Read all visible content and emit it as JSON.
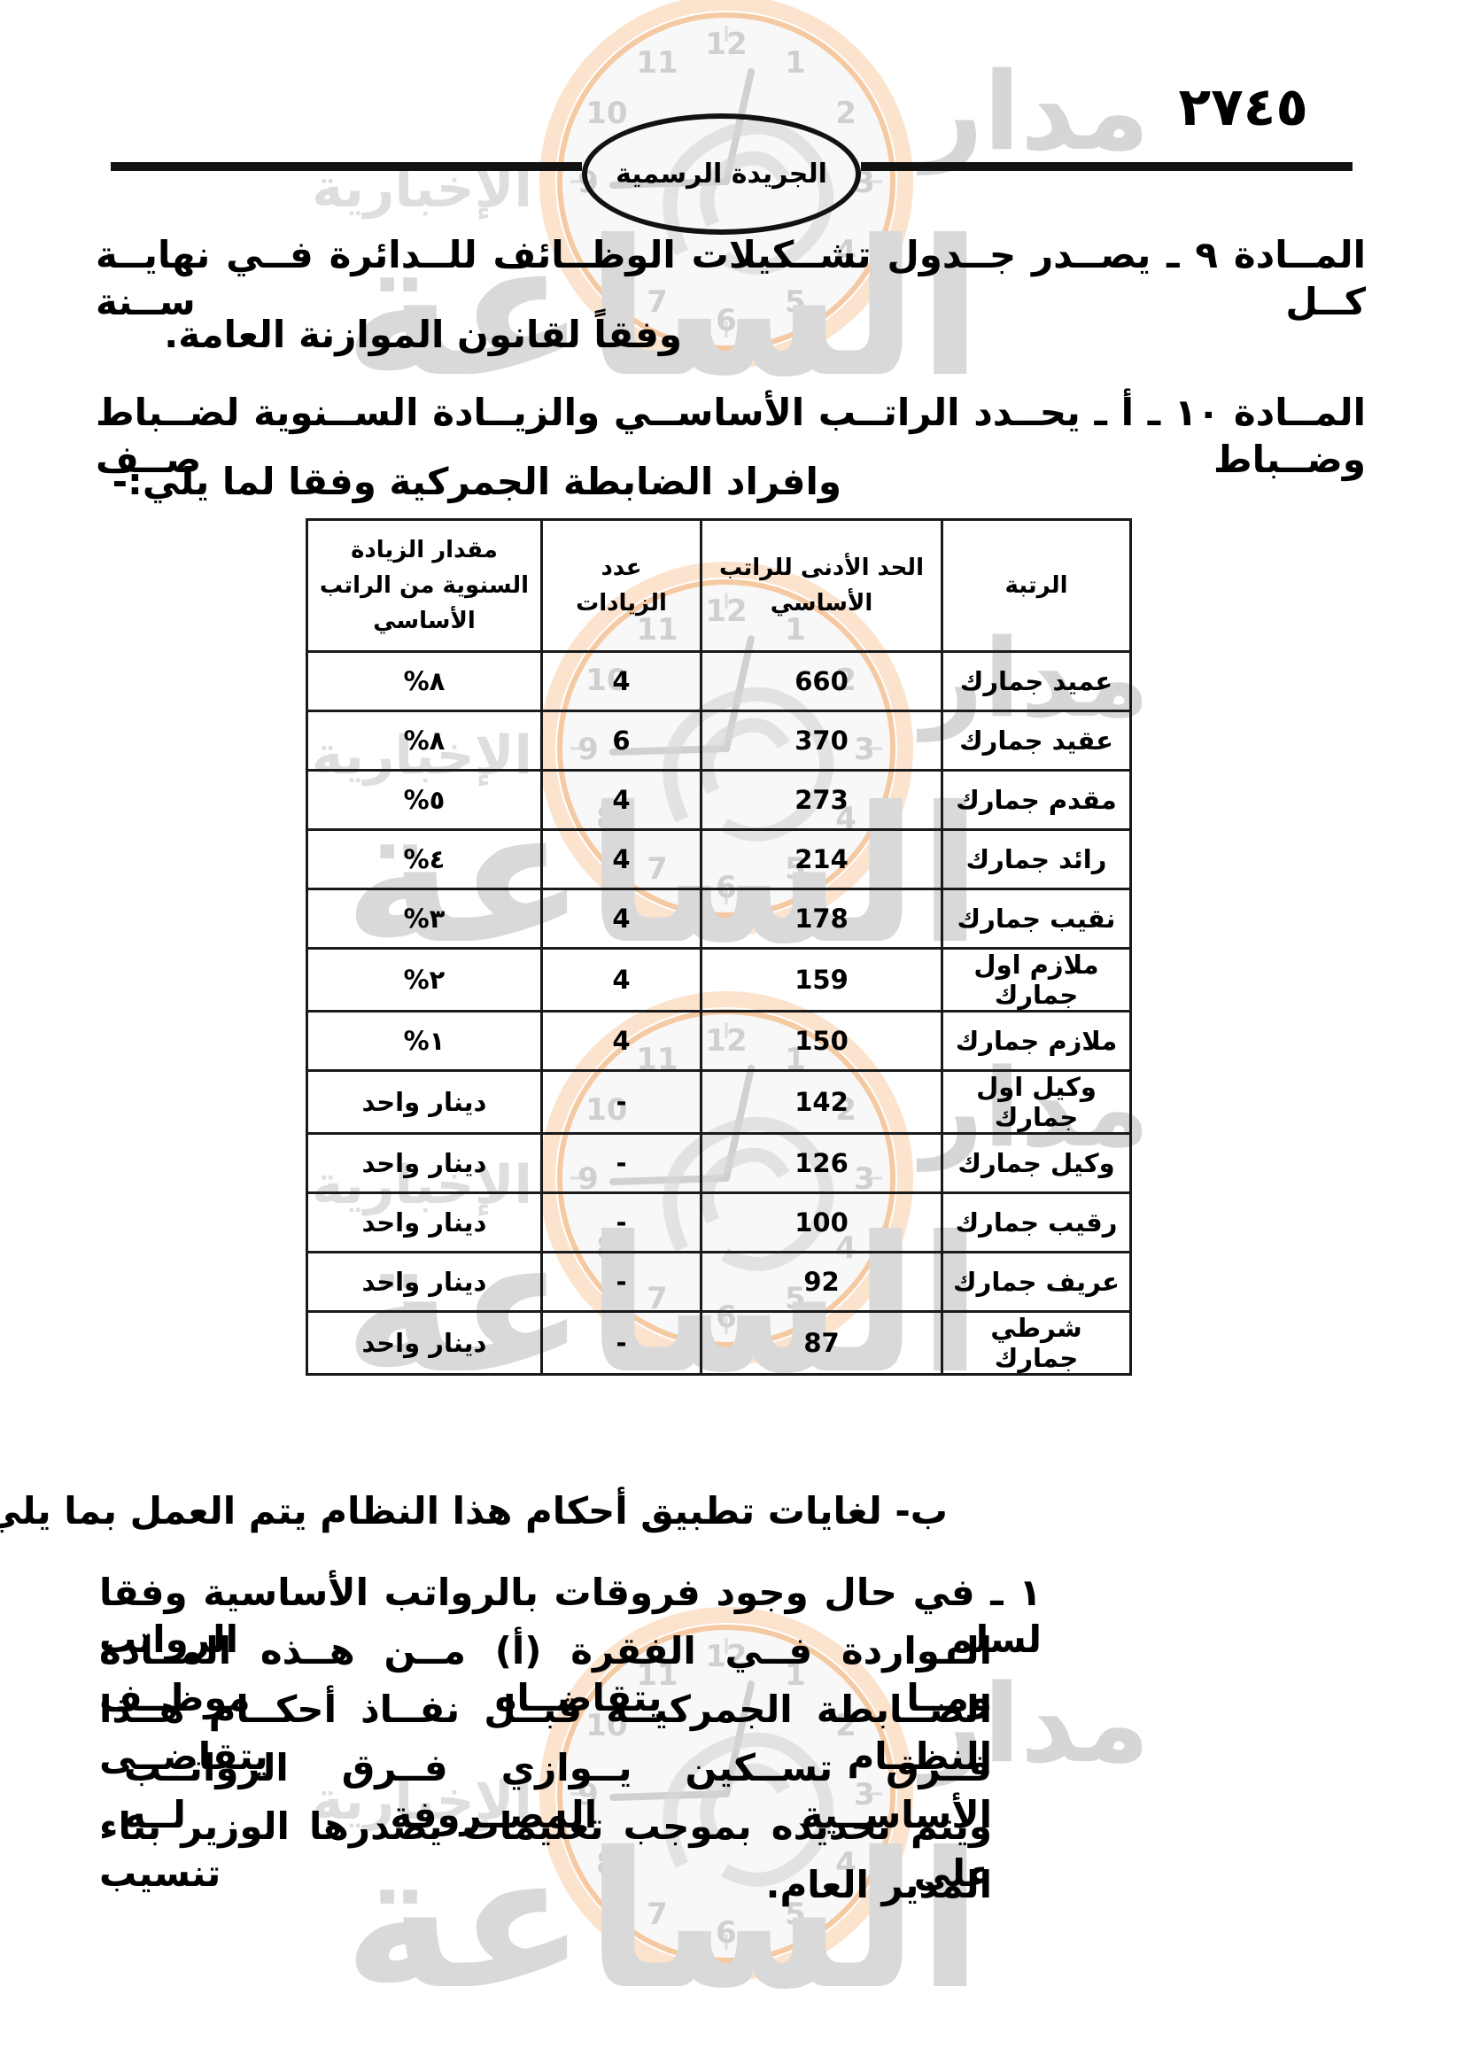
{
  "header": {
    "page_number": "٢٧٤٥",
    "gazette_label": "الجريدة الرسمية"
  },
  "article9": {
    "line1": "المــادة ٩ ـ يصــدر جــدول تشــكيلات الوظــائف للــدائرة فــي نهايــة كــل ســنة",
    "line2": "وفقاً لقانون الموازنة العامة."
  },
  "article10": {
    "line1": "المــادة ١٠ ـ أ ـ يحــدد الراتــب الأساســي والزيــادة الســنوية لضــباط وضــباط صــف",
    "line2": "وافراد الضابطة الجمركية وفقا لما يلي:-"
  },
  "table": {
    "headers": {
      "rank": "الرتبة",
      "min_salary": "الحد الأدنى للراتب الأساسي",
      "increments": "عدد الزيادات",
      "increase": "مقدار الزيادة السنوية من الراتب الأساسي"
    },
    "rows": [
      {
        "rank": "عميد جمارك",
        "min": "660",
        "count": "4",
        "inc": "٨%"
      },
      {
        "rank": "عقيد جمارك",
        "min": "370",
        "count": "6",
        "inc": "٨%"
      },
      {
        "rank": "مقدم جمارك",
        "min": "273",
        "count": "4",
        "inc": "٥%"
      },
      {
        "rank": "رائد جمارك",
        "min": "214",
        "count": "4",
        "inc": "٤%"
      },
      {
        "rank": "نقيب جمارك",
        "min": "178",
        "count": "4",
        "inc": "٣%"
      },
      {
        "rank": "ملازم اول جمارك",
        "min": "159",
        "count": "4",
        "inc": "٢%"
      },
      {
        "rank": "ملازم جمارك",
        "min": "150",
        "count": "4",
        "inc": "١%"
      },
      {
        "rank": "وكيل اول جمارك",
        "min": "142",
        "count": "-",
        "inc": "دينار واحد"
      },
      {
        "rank": "وكيل جمارك",
        "min": "126",
        "count": "-",
        "inc": "دينار واحد"
      },
      {
        "rank": "رقيب جمارك",
        "min": "100",
        "count": "-",
        "inc": "دينار واحد"
      },
      {
        "rank": "عريف جمارك",
        "min": "92",
        "count": "-",
        "inc": "دينار واحد"
      },
      {
        "rank": "شرطي جمارك",
        "min": "87",
        "count": "-",
        "inc": "دينار واحد"
      }
    ]
  },
  "section_b": {
    "line": "ب- لغايات تطبيق أحكام هذا النظام يتم العمل بما يلي: -"
  },
  "item1": {
    "lines": [
      "١ ـ في حال وجود فروقات بالرواتب الأساسية وفقا لسلم الرواتب",
      "الــواردة فــي الفقرة (أ) مــن هــذه المــادة ومــا يتقاضــاه موظــف",
      "الضــابطة الجمركيــة قبــل نفــاذ أحكــام هــذا النظــام يتقاضــى",
      "فــرق تســكين يــوازي فــرق الرواتــب الأساســية المصــروفة لــه",
      "ويتم تحديده بموجب تعليمات يصدرها الوزير بناء على تنسيب",
      "المدير العام."
    ]
  },
  "watermark": {
    "word_madar": "مدار",
    "word_saa": "الساعة",
    "word_news": "الإخبارية",
    "clock_numbers": [
      "1",
      "2",
      "3",
      "4",
      "5",
      "6",
      "7",
      "8",
      "9",
      "10",
      "11",
      "12"
    ]
  }
}
